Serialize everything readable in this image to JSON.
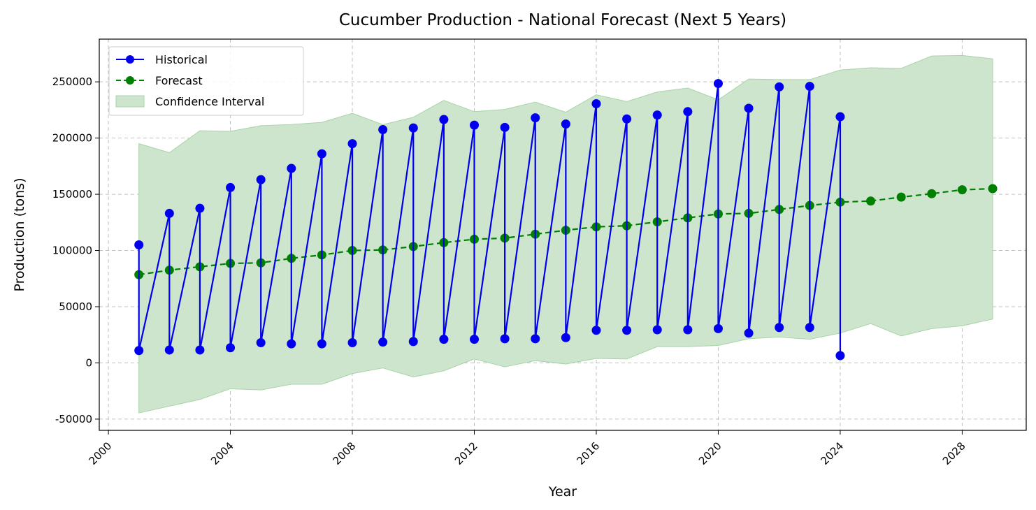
{
  "chart_data": {
    "type": "line",
    "title": "Cucumber Production - National Forecast (Next 5 Years)",
    "xlabel": "Year",
    "ylabel": "Production (tons)",
    "xlim": [
      1999.7,
      2030.1
    ],
    "ylim": [
      -60000,
      288000
    ],
    "x_ticks": [
      2000,
      2004,
      2008,
      2012,
      2016,
      2020,
      2024,
      2028
    ],
    "y_ticks": [
      -50000,
      0,
      50000,
      100000,
      150000,
      200000,
      250000
    ],
    "grid": true,
    "legend_position": "top-left",
    "legend": [
      "Historical",
      "Forecast",
      "Confidence Interval"
    ],
    "colors": {
      "historical": "#0000ee",
      "forecast": "#008000",
      "confidence": "#cce5cc",
      "confidence_edge": "#a8d4a8"
    },
    "series": [
      {
        "name": "Historical",
        "style": "solid-markers",
        "points": [
          [
            2001,
            105000
          ],
          [
            2001,
            11000
          ],
          [
            2002,
            133000
          ],
          [
            2002,
            11500
          ],
          [
            2003,
            137500
          ],
          [
            2003,
            11500
          ],
          [
            2004,
            156000
          ],
          [
            2004,
            13500
          ],
          [
            2005,
            163000
          ],
          [
            2005,
            18000
          ],
          [
            2006,
            173000
          ],
          [
            2006,
            17000
          ],
          [
            2007,
            186000
          ],
          [
            2007,
            17000
          ],
          [
            2008,
            195000
          ],
          [
            2008,
            18000
          ],
          [
            2009,
            207500
          ],
          [
            2009,
            18500
          ],
          [
            2010,
            209000
          ],
          [
            2010,
            19000
          ],
          [
            2011,
            216500
          ],
          [
            2011,
            21000
          ],
          [
            2012,
            211500
          ],
          [
            2012,
            21000
          ],
          [
            2013,
            209500
          ],
          [
            2013,
            21500
          ],
          [
            2014,
            218000
          ],
          [
            2014,
            21500
          ],
          [
            2015,
            212500
          ],
          [
            2015,
            22500
          ],
          [
            2016,
            230500
          ],
          [
            2016,
            29000
          ],
          [
            2017,
            217000
          ],
          [
            2017,
            29000
          ],
          [
            2018,
            220500
          ],
          [
            2018,
            29500
          ],
          [
            2019,
            223500
          ],
          [
            2019,
            29500
          ],
          [
            2020,
            248500
          ],
          [
            2020,
            30500
          ],
          [
            2021,
            226500
          ],
          [
            2021,
            26500
          ],
          [
            2022,
            245500
          ],
          [
            2022,
            31500
          ],
          [
            2023,
            246000
          ],
          [
            2023,
            31500
          ],
          [
            2024,
            219000
          ],
          [
            2024,
            6500
          ]
        ]
      },
      {
        "name": "Forecast",
        "style": "dashed-markers",
        "points": [
          [
            2001,
            78500
          ],
          [
            2002,
            82500
          ],
          [
            2003,
            85500
          ],
          [
            2004,
            88500
          ],
          [
            2005,
            89000
          ],
          [
            2006,
            93000
          ],
          [
            2007,
            96000
          ],
          [
            2008,
            100000
          ],
          [
            2009,
            100500
          ],
          [
            2010,
            103500
          ],
          [
            2011,
            107000
          ],
          [
            2012,
            110000
          ],
          [
            2013,
            111000
          ],
          [
            2014,
            114500
          ],
          [
            2015,
            118000
          ],
          [
            2016,
            121000
          ],
          [
            2017,
            122000
          ],
          [
            2018,
            125500
          ],
          [
            2019,
            129000
          ],
          [
            2020,
            132500
          ],
          [
            2021,
            133000
          ],
          [
            2022,
            136500
          ],
          [
            2023,
            140000
          ],
          [
            2024,
            143000
          ],
          [
            2025,
            144000
          ],
          [
            2026,
            147500
          ],
          [
            2027,
            150500
          ],
          [
            2028,
            154000
          ],
          [
            2029,
            155000
          ]
        ]
      },
      {
        "name": "Confidence Interval",
        "style": "band",
        "x": [
          2001,
          2002,
          2003,
          2004,
          2005,
          2006,
          2007,
          2008,
          2009,
          2010,
          2011,
          2012,
          2013,
          2014,
          2015,
          2016,
          2017,
          2018,
          2019,
          2020,
          2021,
          2022,
          2023,
          2024,
          2025,
          2026,
          2027,
          2028,
          2029
        ],
        "upper": [
          195000,
          187000,
          206500,
          206000,
          211000,
          212000,
          214000,
          222000,
          212000,
          218500,
          233500,
          223500,
          225500,
          232000,
          223000,
          238500,
          232500,
          241000,
          244500,
          234000,
          252500,
          252000,
          252000,
          260500,
          262500,
          262000,
          273000,
          273500,
          270500
        ],
        "lower": [
          -44500,
          -38500,
          -32500,
          -23000,
          -24000,
          -19000,
          -19000,
          -9500,
          -4500,
          -12500,
          -7000,
          3500,
          -3500,
          2000,
          -1000,
          4000,
          3500,
          14500,
          14500,
          15500,
          21500,
          23000,
          21000,
          26500,
          35000,
          24000,
          30500,
          33000,
          39000
        ]
      }
    ]
  }
}
